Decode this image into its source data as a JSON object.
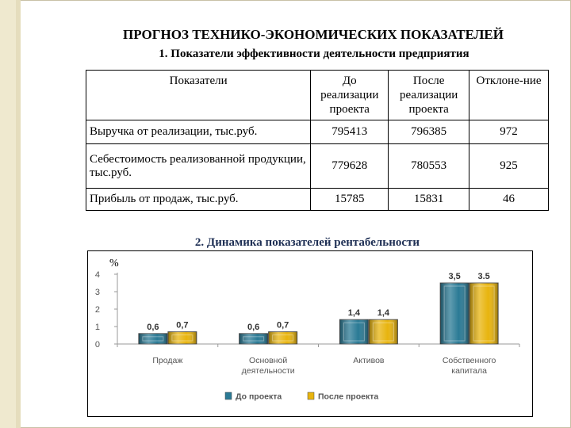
{
  "slide": {
    "title": "ПРОГНОЗ ТЕХНИКО-ЭКОНОМИЧЕСКИХ ПОКАЗАТЕЛЕЙ",
    "subtitle": "1. Показатели эффективности деятельности предприятия",
    "section2_title": "2. Динамика показателей рентабельности"
  },
  "table": {
    "headers": [
      "Показатели",
      "До реализации проекта",
      "После реализации проекта",
      "Отклоне-ние"
    ],
    "rows": [
      [
        "Выручка от реализации, тыс.руб.",
        "795413",
        "796385",
        "972"
      ],
      [
        "Себестоимость реализованной продукции, тыс.руб.",
        "779628",
        "780553",
        "925"
      ],
      [
        "Прибыль от продаж, тыс.руб.",
        "15785",
        "15831",
        "46"
      ]
    ]
  },
  "chart_data": {
    "type": "bar",
    "ylabel": "%",
    "ylim": [
      0,
      4
    ],
    "yticks": [
      "0",
      "1",
      "2",
      "3",
      "4"
    ],
    "categories": [
      "Продаж",
      "Основной деятельности",
      "Активов",
      "Собственного капитала"
    ],
    "series": [
      {
        "name": "До проекта",
        "values": [
          0.6,
          0.6,
          1.4,
          3.5
        ],
        "labels": [
          "0,6",
          "0,6",
          "1,4",
          "3,5"
        ],
        "color": "#2a7a95"
      },
      {
        "name": "После проекта",
        "values": [
          0.7,
          0.7,
          1.4,
          3.5
        ],
        "labels": [
          "0,7",
          "0,7",
          "1,4",
          "3.5"
        ],
        "color": "#e8b40e"
      }
    ],
    "grid": false,
    "legend_position": "bottom"
  }
}
